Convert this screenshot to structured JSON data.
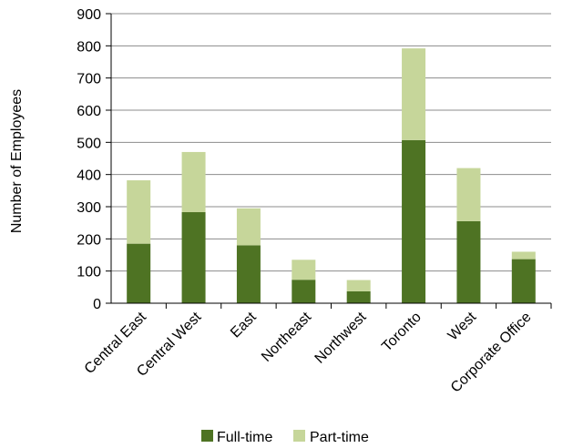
{
  "chart_data": {
    "type": "bar",
    "stacked": true,
    "categories": [
      "Central East",
      "Central West",
      "East",
      "Northeast",
      "Northwest",
      "Toronto",
      "West",
      "Corporate Office"
    ],
    "series": [
      {
        "name": "Full-time",
        "color": "#4e7323",
        "values": [
          185,
          283,
          180,
          73,
          37,
          507,
          255,
          137
        ]
      },
      {
        "name": "Part-time",
        "color": "#c6d69a",
        "values": [
          197,
          187,
          115,
          62,
          35,
          285,
          165,
          23
        ]
      }
    ],
    "ylabel": "Number of Employees",
    "ylim": [
      0,
      900
    ],
    "yticks": [
      0,
      100,
      200,
      300,
      400,
      500,
      600,
      700,
      800,
      900
    ],
    "grid": true,
    "legend_position": "bottom"
  }
}
